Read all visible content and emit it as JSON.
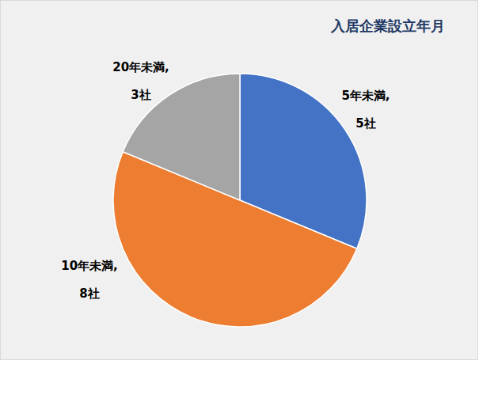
{
  "chart_data": {
    "type": "pie",
    "title": "入居企業設立年月",
    "categories": [
      "5年未満",
      "10年未満",
      "20年未満"
    ],
    "values": [
      5,
      8,
      3
    ],
    "value_labels": [
      "5年未満,\n5社",
      "10年未満,\n8社",
      "20年未満,\n3社"
    ],
    "colors": [
      "#4472c4",
      "#ed7d31",
      "#a5a5a5"
    ],
    "data_labels": true
  }
}
